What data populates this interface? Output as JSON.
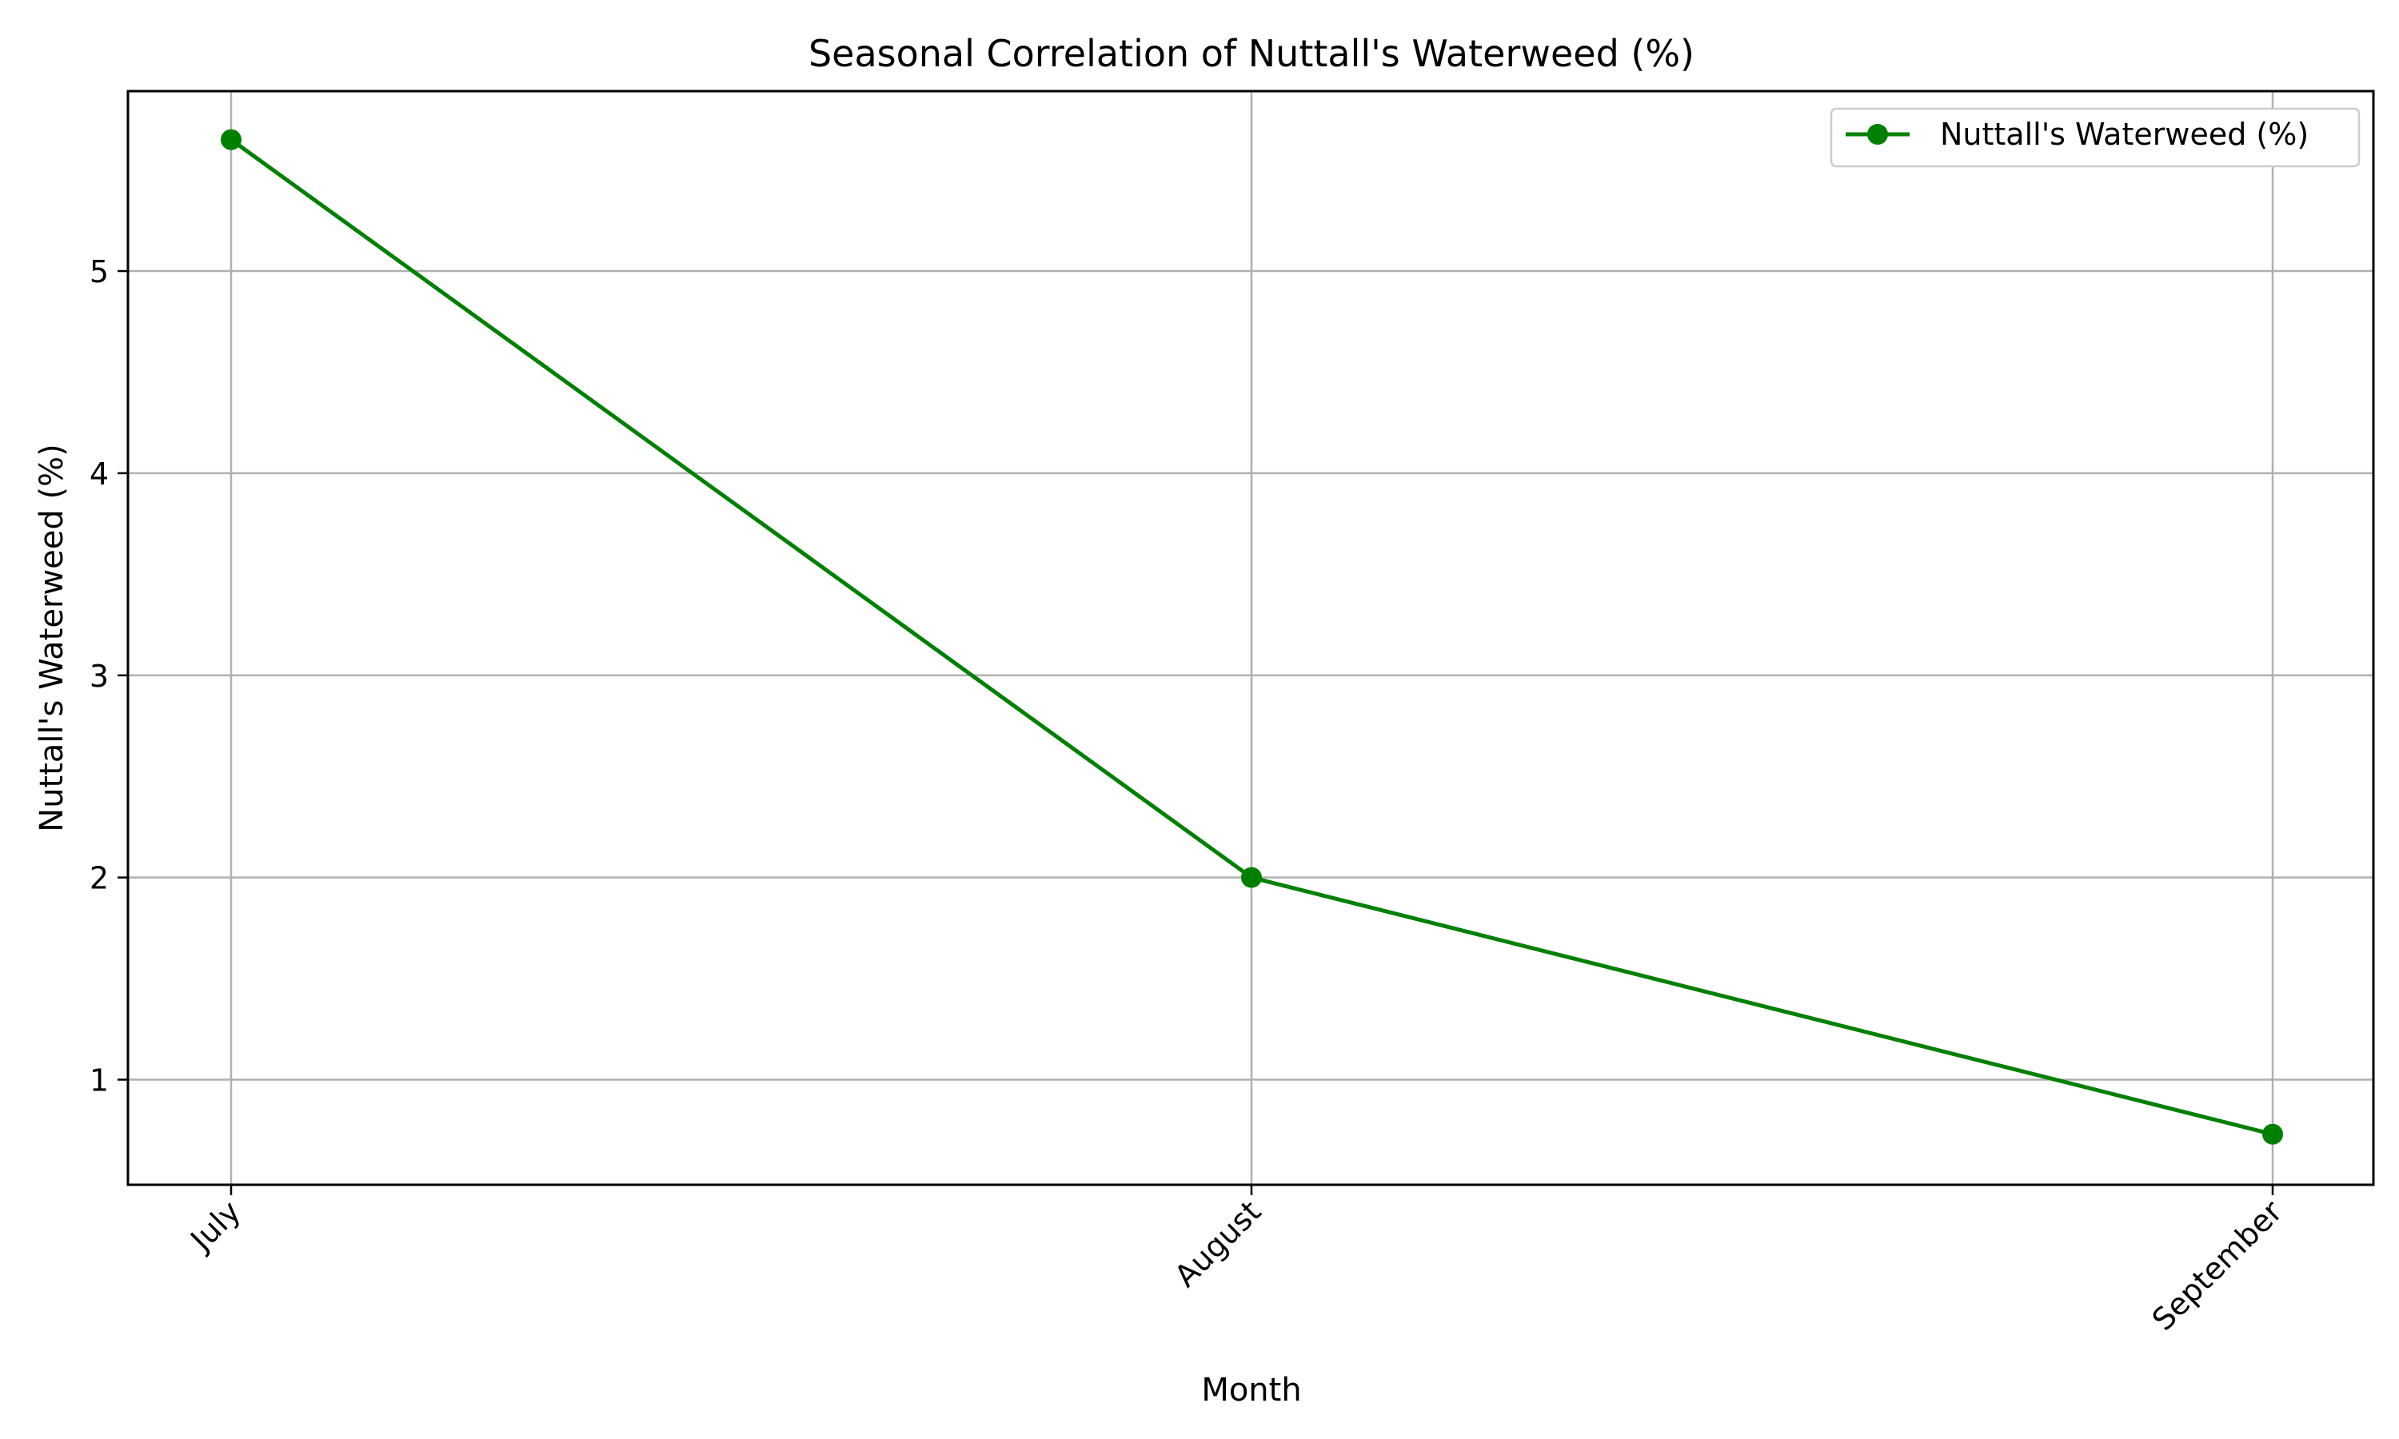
{
  "chart_data": {
    "type": "line",
    "title": "Seasonal Correlation of Nuttall's Waterweed (%)",
    "xlabel": "Month",
    "ylabel": "Nuttall's Waterweed (%)",
    "categories": [
      "July",
      "August",
      "September"
    ],
    "series": [
      {
        "name": "Nuttall's Waterweed (%)",
        "values": [
          5.65,
          2.0,
          0.73
        ],
        "color": "#008000",
        "marker": "circle"
      }
    ],
    "ylim": [
      0.48,
      5.89
    ],
    "yticks": [
      "1",
      "2",
      "3",
      "4",
      "5"
    ],
    "grid": true,
    "legend": "top-right",
    "xtick_rotation": "45 degrees"
  }
}
